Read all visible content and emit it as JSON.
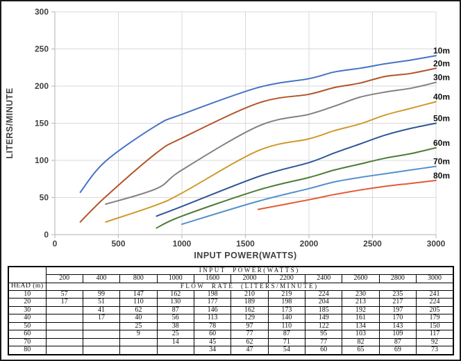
{
  "chart_data": {
    "type": "line",
    "title": "",
    "xlabel": "INPUT POWER(WATTS)",
    "ylabel": "LITERS/MINUTE",
    "xlim": [
      0,
      3000
    ],
    "ylim": [
      0,
      300
    ],
    "x_ticks": [
      0,
      500,
      1000,
      1500,
      2000,
      2500,
      3000
    ],
    "y_ticks": [
      0,
      50,
      100,
      150,
      200,
      250,
      300
    ],
    "grid": true,
    "legend_position": "end-of-line-labels",
    "line_style": "smooth",
    "x": [
      200,
      400,
      800,
      1000,
      1600,
      2000,
      2200,
      2400,
      2600,
      2800,
      3000
    ],
    "series": [
      {
        "name": "10m",
        "head_m": 10,
        "color": "#4472C4",
        "values": [
          57,
          99,
          147,
          162,
          198,
          210,
          219,
          224,
          230,
          235,
          241
        ]
      },
      {
        "name": "20m",
        "head_m": 20,
        "color": "#B25428",
        "values": [
          17,
          51,
          110,
          130,
          177,
          189,
          198,
          204,
          213,
          217,
          224
        ]
      },
      {
        "name": "30m",
        "head_m": 30,
        "color": "#808080",
        "values": [
          null,
          41,
          62,
          87,
          146,
          162,
          173,
          185,
          192,
          197,
          205
        ]
      },
      {
        "name": "40m",
        "head_m": 40,
        "color": "#CE9A2B",
        "values": [
          null,
          17,
          40,
          56,
          113,
          129,
          140,
          149,
          161,
          170,
          179
        ]
      },
      {
        "name": "50m",
        "head_m": 50,
        "color": "#2F5597",
        "values": [
          null,
          null,
          25,
          38,
          78,
          97,
          110,
          122,
          134,
          143,
          150
        ]
      },
      {
        "name": "60m",
        "head_m": 60,
        "color": "#4E7B37",
        "values": [
          null,
          null,
          9,
          25,
          60,
          77,
          87,
          95,
          103,
          109,
          117
        ]
      },
      {
        "name": "70m",
        "head_m": 70,
        "color": "#5490CC",
        "values": [
          null,
          null,
          null,
          14,
          45,
          62,
          71,
          77,
          82,
          87,
          92
        ]
      },
      {
        "name": "80m",
        "head_m": 80,
        "color": "#E05C33",
        "values": [
          null,
          null,
          null,
          null,
          34,
          47,
          54,
          60,
          65,
          69,
          73
        ]
      }
    ],
    "style": {
      "grid_color": "#D9D9D9",
      "axis_color": "#BFBFBF",
      "tick_text_color": "#404040",
      "series_label_color": "#111111",
      "background": "#FFFFFF"
    }
  },
  "table": {
    "power_header": "INPUT POWER(WATTS)",
    "flow_header": "FLOW RATE (LITERS/MINUTE)",
    "head_label": "HEAD (m)",
    "corner_label": ""
  }
}
